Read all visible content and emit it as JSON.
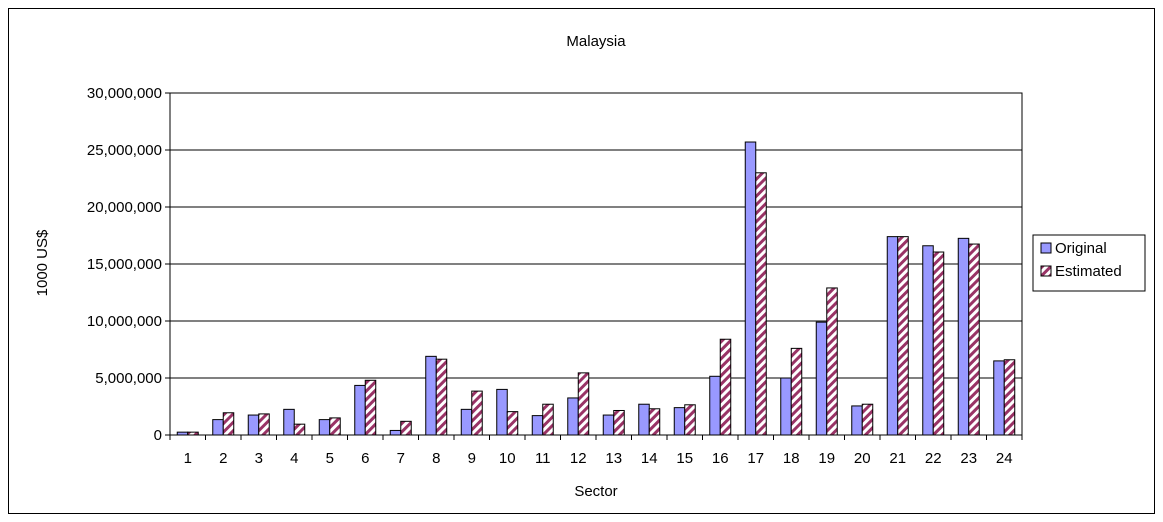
{
  "chart_data": {
    "type": "bar",
    "title": "Malaysia",
    "xlabel": "Sector",
    "ylabel": "1000 US$",
    "ylim": [
      0,
      30000000
    ],
    "yticks": [
      0,
      5000000,
      10000000,
      15000000,
      20000000,
      25000000,
      30000000
    ],
    "ytick_labels": [
      "0",
      "5,000,000",
      "10,000,000",
      "15,000,000",
      "20,000,000",
      "25,000,000",
      "30,000,000"
    ],
    "grid": true,
    "legend_position": "right",
    "categories": [
      "1",
      "2",
      "3",
      "4",
      "5",
      "6",
      "7",
      "8",
      "9",
      "10",
      "11",
      "12",
      "13",
      "14",
      "15",
      "16",
      "17",
      "18",
      "19",
      "20",
      "21",
      "22",
      "23",
      "24"
    ],
    "series": [
      {
        "name": "Original",
        "color": "#9999ff",
        "pattern": "solid",
        "values": [
          250000,
          1350000,
          1750000,
          2250000,
          1350000,
          4350000,
          400000,
          6900000,
          2250000,
          4000000,
          1700000,
          3250000,
          1750000,
          2700000,
          2400000,
          5150000,
          25700000,
          5000000,
          9900000,
          2550000,
          17400000,
          16600000,
          17250000,
          6500000
        ]
      },
      {
        "name": "Estimated",
        "color": "#993366",
        "pattern": "diagonal-stripes",
        "values": [
          250000,
          1950000,
          1850000,
          950000,
          1500000,
          4800000,
          1200000,
          6650000,
          3850000,
          2050000,
          2700000,
          5450000,
          2150000,
          2300000,
          2650000,
          8400000,
          23000000,
          7600000,
          12900000,
          2700000,
          17400000,
          16050000,
          16750000,
          6600000
        ]
      }
    ]
  }
}
